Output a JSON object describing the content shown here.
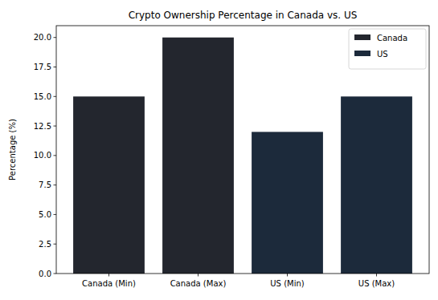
{
  "chart_data": {
    "type": "bar",
    "title": "Crypto Ownership Percentage in Canada vs. US",
    "y_label": "Percentage (%)",
    "categories": [
      "Canada (Min)",
      "Canada (Max)",
      "US (Min)",
      "US (Max)"
    ],
    "series": [
      {
        "name": "Canada",
        "color": "#23262e",
        "values": [
          15,
          20,
          null,
          null
        ]
      },
      {
        "name": "US",
        "color": "#1c2a3b",
        "values": [
          null,
          null,
          12,
          15
        ]
      }
    ],
    "ylim": [
      0,
      21
    ],
    "yticks": [
      {
        "value": 0,
        "label": "0.0"
      },
      2.5,
      {
        "value": 5,
        "label": "5.0"
      },
      7.5,
      {
        "value": 10,
        "label": "10.0"
      },
      12.5,
      {
        "value": 15,
        "label": "15.0"
      },
      17.5,
      {
        "value": 20,
        "label": "20.0"
      }
    ],
    "grid": false,
    "legend": "upper-right"
  }
}
